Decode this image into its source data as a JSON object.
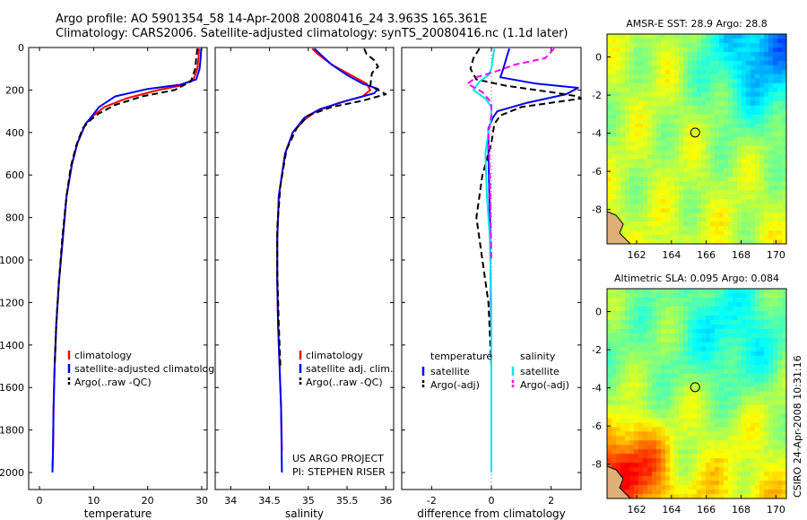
{
  "header": {
    "line1": "Argo profile: AO 5901354_58 14-Apr-2008 20080416_24 3.963S 165.361E",
    "line2": "Climatology: CARS2006. Satellite-adjusted climatology: synTS_20080416.nc (1.1d later)"
  },
  "stamp": "CSIRO 24-Apr-2008 10:31:16",
  "colors": {
    "climatology": "#ff0000",
    "satellite": "#0000ff",
    "argo": "#000000",
    "sal_satellite": "#00e5ee",
    "sal_argo": "#ff00ff"
  },
  "chart_data": [
    {
      "id": "temperature",
      "type": "line",
      "xlabel": "temperature",
      "ylabel": "",
      "xlim": [
        -2,
        31
      ],
      "ylim": [
        2080,
        0
      ],
      "y_reversed": true,
      "xticks": [
        0,
        10,
        20,
        30
      ],
      "xtick_labels": [
        "0",
        "10",
        "20",
        "30"
      ],
      "yticks": [
        0,
        200,
        400,
        600,
        800,
        1000,
        1200,
        1400,
        1600,
        1800,
        2000
      ],
      "ytick_labels": [
        "0",
        "200",
        "400",
        "600",
        "800",
        "1000",
        "1200",
        "1400",
        "1600",
        "1800",
        "2000"
      ],
      "legend": [
        "climatology",
        "satellite-adjusted climatology",
        "Argo(..raw -QC)"
      ],
      "legend_position": "lower-middle",
      "series": [
        {
          "name": "climatology",
          "style": "solid",
          "color": "#ff0000",
          "x": [
            29.5,
            29.4,
            29.2,
            28.5,
            26,
            22,
            16,
            12,
            10,
            8.5,
            7,
            6,
            5,
            4.3,
            3.6,
            3.1,
            2.8,
            2.6,
            2.5,
            2.4
          ],
          "y": [
            5,
            50,
            100,
            150,
            180,
            200,
            240,
            280,
            320,
            360,
            450,
            550,
            700,
            900,
            1100,
            1300,
            1500,
            1700,
            1900,
            1980
          ]
        },
        {
          "name": "satellite-adjusted climatology",
          "style": "solid",
          "color": "#0000ff",
          "x": [
            29.9,
            29.8,
            29.6,
            29.0,
            26,
            20,
            14,
            11,
            9.8,
            8.5,
            7,
            6,
            5,
            4.3,
            3.6,
            3.1,
            2.8,
            2.6,
            2.5,
            2.4
          ],
          "y": [
            5,
            50,
            100,
            150,
            175,
            195,
            230,
            280,
            320,
            360,
            450,
            550,
            700,
            900,
            1100,
            1300,
            1500,
            1700,
            1900,
            2000
          ]
        },
        {
          "name": "Argo(..raw -QC)",
          "style": "dashed",
          "color": "#000000",
          "x": [
            29.2,
            29.0,
            28.8,
            28.0,
            25,
            19,
            14,
            11,
            9.5,
            8,
            6.8,
            5.8,
            5,
            4.2,
            3.6,
            3.1,
            2.8
          ],
          "y": [
            5,
            50,
            100,
            160,
            200,
            230,
            270,
            310,
            340,
            380,
            460,
            560,
            700,
            900,
            1100,
            1300,
            1500
          ]
        }
      ]
    },
    {
      "id": "salinity",
      "type": "line",
      "xlabel": "salinity",
      "ylabel": "",
      "xlim": [
        33.8,
        36.1
      ],
      "ylim": [
        2080,
        0
      ],
      "y_reversed": true,
      "xticks": [
        34,
        34.5,
        35,
        35.5,
        36
      ],
      "xtick_labels": [
        "34",
        "34.5",
        "35",
        "35.5",
        "36"
      ],
      "legend": [
        "climatology",
        "satellite adj. clim.",
        "Argo(..raw -QC)"
      ],
      "legend_position": "lower-middle",
      "annotations": [
        "US ARGO PROJECT",
        "PI: STEPHEN RISER"
      ],
      "series": [
        {
          "name": "climatology",
          "style": "solid",
          "color": "#ff0000",
          "x": [
            35.05,
            35.12,
            35.3,
            35.55,
            35.75,
            35.8,
            35.7,
            35.4,
            35.1,
            34.95,
            34.8,
            34.7,
            34.62,
            34.6,
            34.6,
            34.61,
            34.63,
            34.65,
            34.66
          ],
          "y": [
            5,
            30,
            80,
            130,
            170,
            200,
            230,
            260,
            300,
            340,
            400,
            500,
            700,
            900,
            1100,
            1300,
            1500,
            1700,
            1900
          ]
        },
        {
          "name": "satellite adj. clim.",
          "style": "solid",
          "color": "#0000ff",
          "x": [
            35.08,
            35.15,
            35.3,
            35.5,
            35.7,
            35.9,
            35.85,
            35.5,
            35.15,
            34.95,
            34.8,
            34.7,
            34.62,
            34.6,
            34.6,
            34.61,
            34.63,
            34.65,
            34.66
          ],
          "y": [
            5,
            30,
            80,
            130,
            170,
            195,
            215,
            250,
            290,
            330,
            400,
            500,
            700,
            900,
            1100,
            1300,
            1500,
            1700,
            2000
          ]
        },
        {
          "name": "Argo(..raw -QC)",
          "style": "dashed",
          "color": "#000000",
          "x": [
            35.72,
            35.75,
            35.85,
            35.9,
            35.82,
            35.8,
            36.0,
            35.7,
            35.3,
            35.0,
            34.85,
            34.72,
            34.64,
            34.6,
            34.6,
            34.62,
            34.64
          ],
          "y": [
            5,
            30,
            60,
            90,
            120,
            180,
            220,
            250,
            280,
            320,
            380,
            480,
            650,
            850,
            1050,
            1300,
            1500
          ]
        }
      ]
    },
    {
      "id": "difference",
      "type": "line",
      "xlabel": "difference from climatology",
      "ylabel": "",
      "xlim": [
        -3,
        3
      ],
      "ylim": [
        2080,
        0
      ],
      "y_reversed": true,
      "xticks": [
        -2,
        0,
        2
      ],
      "xtick_labels": [
        "-2",
        "0",
        "2"
      ],
      "legend_groups": [
        {
          "heading": "temperature",
          "items": [
            "satellite",
            "Argo(-adj)"
          ]
        },
        {
          "heading": "salinity",
          "items": [
            "satellite",
            "Argo(-adj)"
          ]
        }
      ],
      "legend_position": "lower-middle",
      "series": [
        {
          "name": "temperature satellite",
          "style": "solid",
          "color": "#0000ff",
          "x": [
            0.6,
            0.5,
            0.4,
            0.3,
            1.5,
            2.9,
            2.5,
            1.2,
            0.2,
            0.05,
            -0.1,
            -0.1,
            -0.05,
            -0.02,
            0.0,
            0.0
          ],
          "y": [
            5,
            50,
            100,
            140,
            170,
            190,
            220,
            260,
            300,
            330,
            380,
            500,
            800,
            1100,
            1400,
            1500
          ]
        },
        {
          "name": "temperature Argo(-adj)",
          "style": "dashed",
          "color": "#000000",
          "x": [
            -0.4,
            -0.6,
            -0.7,
            -0.5,
            0.5,
            2.0,
            2.9,
            3.0,
            1.0,
            0.3,
            0.1,
            0.0,
            -0.3,
            -0.5,
            -0.3,
            -0.1,
            0.0
          ],
          "y": [
            5,
            50,
            100,
            150,
            180,
            210,
            230,
            240,
            280,
            320,
            360,
            450,
            600,
            800,
            1000,
            1200,
            1500
          ]
        },
        {
          "name": "salinity satellite",
          "style": "solid",
          "color": "#00e5ee",
          "x": [
            0.1,
            0.05,
            0.0,
            -0.1,
            -0.4,
            -0.6,
            -0.2,
            0.0,
            0.0,
            -0.1,
            -0.2,
            -0.15,
            -0.05,
            0.0,
            0.0,
            0.0
          ],
          "y": [
            5,
            50,
            100,
            130,
            160,
            200,
            240,
            280,
            330,
            400,
            500,
            700,
            900,
            1200,
            1600,
            2000
          ]
        },
        {
          "name": "salinity Argo(-adj)",
          "style": "dashed",
          "color": "#ff00ff",
          "x": [
            2.1,
            1.8,
            0.8,
            0.2,
            -0.5,
            -0.8,
            -0.3,
            0.0,
            0.0,
            -0.1,
            -0.05,
            0.0
          ],
          "y": [
            5,
            50,
            80,
            110,
            140,
            170,
            210,
            260,
            320,
            400,
            600,
            1000
          ]
        }
      ]
    },
    {
      "id": "sst-map",
      "type": "heatmap",
      "title": "AMSR-E SST: 28.9 Argo: 28.8",
      "xlim": [
        160.3,
        170.6
      ],
      "ylim": [
        -9.8,
        1.2
      ],
      "xticks": [
        162,
        164,
        166,
        168,
        170
      ],
      "xtick_labels": [
        "162",
        "164",
        "166",
        "168",
        "170"
      ],
      "yticks": [
        0,
        -2,
        -4,
        -6,
        -8
      ],
      "ytick_labels": [
        "0",
        "-2",
        "-4",
        "-6",
        "-8"
      ],
      "marker": {
        "lon": 165.361,
        "lat": -3.963,
        "shape": "circle"
      },
      "palette": "jet"
    },
    {
      "id": "sla-map",
      "type": "heatmap",
      "title": "Altimetric SLA: 0.095 Argo: 0.084",
      "xlim": [
        160.3,
        170.6
      ],
      "ylim": [
        -9.8,
        1.2
      ],
      "xticks": [
        162,
        164,
        166,
        168,
        170
      ],
      "xtick_labels": [
        "162",
        "164",
        "166",
        "168",
        "170"
      ],
      "yticks": [
        0,
        -2,
        -4,
        -6,
        -8
      ],
      "ytick_labels": [
        "0",
        "-2",
        "-4",
        "-6",
        "-8"
      ],
      "marker": {
        "lon": 165.361,
        "lat": -3.963,
        "shape": "circle"
      },
      "palette": "jet"
    }
  ]
}
